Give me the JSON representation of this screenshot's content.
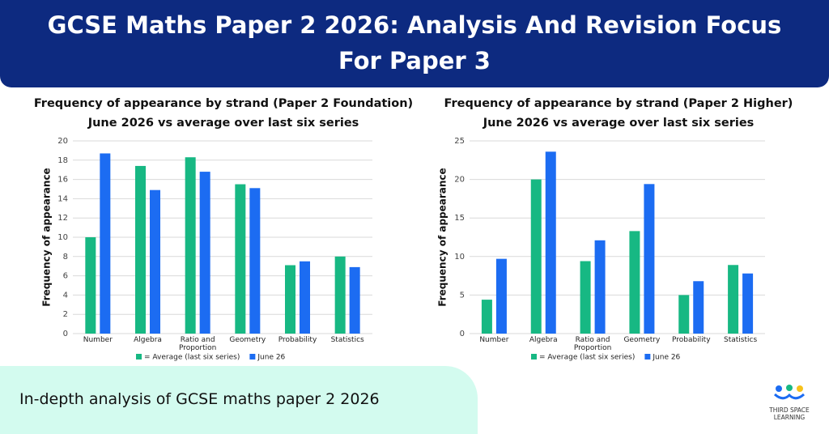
{
  "header": {
    "title": "GCSE Maths Paper 2 2026: Analysis And Revision Focus For Paper 3"
  },
  "chart_data": [
    {
      "type": "bar",
      "title": "Frequency of appearance by strand (Paper 2 Foundation)",
      "subtitle": "June 2026 vs average over last six series",
      "y_label": "Frequency of appearance",
      "categories": [
        "Number",
        "Algebra",
        "Ratio and Proportion",
        "Geometry",
        "Probability",
        "Statistics"
      ],
      "series": [
        {
          "name": "= Average (last six series)",
          "color": "#17b883",
          "values": [
            10,
            17.4,
            18.3,
            15.5,
            7.1,
            8.0
          ]
        },
        {
          "name": "June 26",
          "color": "#1c6cf2",
          "values": [
            18.7,
            14.9,
            16.8,
            15.1,
            7.5,
            6.9
          ]
        }
      ],
      "ylim": [
        0,
        20
      ],
      "yticks": [
        0,
        2,
        4,
        6,
        8,
        10,
        12,
        14,
        16,
        18,
        20
      ],
      "grid": true
    },
    {
      "type": "bar",
      "title": "Frequency of appearance by strand (Paper 2 Higher)",
      "subtitle": "June 2026 vs average over last six series",
      "y_label": "Frequency of appearance",
      "categories": [
        "Number",
        "Algebra",
        "Ratio and Proportion",
        "Geometry",
        "Probability",
        "Statistics"
      ],
      "series": [
        {
          "name": "= Average (last six series)",
          "color": "#17b883",
          "values": [
            4.4,
            20,
            9.4,
            13.3,
            5.0,
            8.9
          ]
        },
        {
          "name": "June 26",
          "color": "#1c6cf2",
          "values": [
            9.7,
            23.6,
            12.1,
            19.4,
            6.8,
            7.8
          ]
        }
      ],
      "ylim": [
        0,
        25
      ],
      "yticks": [
        0,
        5,
        10,
        15,
        20,
        25
      ],
      "grid": true
    }
  ],
  "footer": {
    "text": "In-depth analysis of GCSE maths paper 2 2026"
  },
  "logo": {
    "text": "THIRD SPACE LEARNING"
  }
}
